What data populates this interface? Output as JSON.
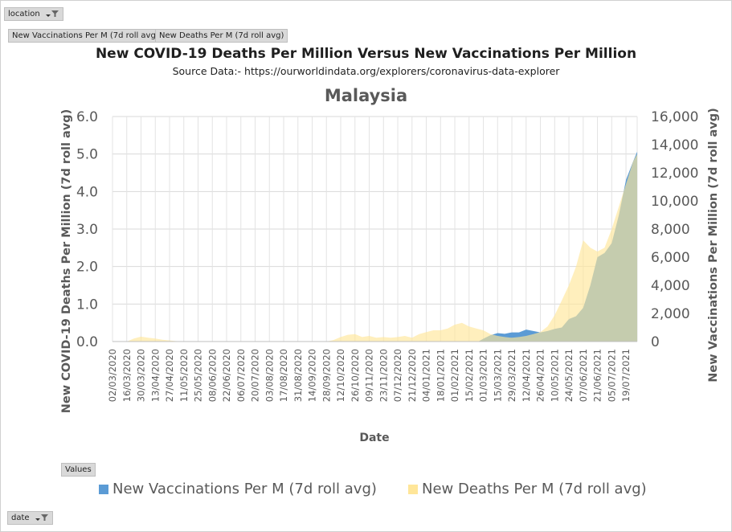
{
  "pivot": {
    "location_label": "location",
    "series_buttons": [
      "New Vaccinations Per M (7d roll avg)",
      "New Deaths Per M (7d roll avg)"
    ],
    "values_label": "Values",
    "date_label": "date"
  },
  "chart_data": {
    "type": "area",
    "title": "New COVID-19 Deaths Per Million  Versus  New Vaccinations  Per Million",
    "subtitle": "Source Data:- https://ourworldindata.org/explorers/coronavirus-data-explorer",
    "chart_title": "Malaysia",
    "xlabel": "Date",
    "ylabel_left": "New COVID-19 Deaths Per Million (7d roll avg)",
    "ylabel_right": "New Vaccinations Per Million (7d roll avg)",
    "ylim_left": [
      0,
      6
    ],
    "ylim_right": [
      0,
      16000
    ],
    "yticks_left": [
      "0.0",
      "1.0",
      "2.0",
      "3.0",
      "4.0",
      "5.0",
      "6.0"
    ],
    "yticks_right": [
      "0",
      "2,000",
      "4,000",
      "6,000",
      "8,000",
      "10,000",
      "12,000",
      "14,000",
      "16,000"
    ],
    "x_range": [
      "02/03/2020",
      "30/07/2021"
    ],
    "x_tick_labels": [
      "02/03/2020",
      "16/03/2020",
      "30/03/2020",
      "13/04/2020",
      "27/04/2020",
      "11/05/2020",
      "25/05/2020",
      "08/06/2020",
      "22/06/2020",
      "06/07/2020",
      "20/07/2020",
      "03/08/2020",
      "17/08/2020",
      "31/08/2020",
      "14/09/2020",
      "28/09/2020",
      "12/10/2020",
      "26/10/2020",
      "09/11/2020",
      "23/11/2020",
      "07/12/2020",
      "21/12/2020",
      "04/01/2021",
      "18/01/2021",
      "01/02/2021",
      "15/02/2021",
      "01/03/2021",
      "15/03/2021",
      "29/03/2021",
      "12/04/2021",
      "26/04/2021",
      "10/05/2021",
      "24/05/2021",
      "07/06/2021",
      "21/06/2021",
      "05/07/2021",
      "19/07/2021"
    ],
    "grid": true,
    "legend_position": "bottom",
    "series": [
      {
        "name": "New Vaccinations Per M (7d roll avg)",
        "axis": "right",
        "color": "#5b9bd5",
        "x": [
          "24/02/2021",
          "01/03/2021",
          "08/03/2021",
          "15/03/2021",
          "22/03/2021",
          "29/03/2021",
          "05/04/2021",
          "12/04/2021",
          "19/04/2021",
          "26/04/2021",
          "03/05/2021",
          "10/05/2021",
          "17/05/2021",
          "24/05/2021",
          "31/05/2021",
          "07/06/2021",
          "14/06/2021",
          "21/06/2021",
          "28/06/2021",
          "05/07/2021",
          "12/07/2021",
          "19/07/2021",
          "26/07/2021",
          "30/07/2021"
        ],
        "y": [
          0,
          200,
          450,
          600,
          550,
          650,
          650,
          850,
          750,
          650,
          750,
          900,
          1000,
          1600,
          1800,
          2400,
          4000,
          6000,
          6300,
          7000,
          9000,
          11500,
          12800,
          13500
        ]
      },
      {
        "name": "New Deaths Per M (7d roll avg)",
        "axis": "left",
        "color": "#ffe699",
        "x": [
          "02/03/2020",
          "16/03/2020",
          "23/03/2020",
          "30/03/2020",
          "06/04/2020",
          "13/04/2020",
          "20/04/2020",
          "27/04/2020",
          "04/05/2020",
          "11/05/2020",
          "25/05/2020",
          "08/06/2020",
          "06/07/2020",
          "03/08/2020",
          "31/08/2020",
          "28/09/2020",
          "05/10/2020",
          "12/10/2020",
          "19/10/2020",
          "26/10/2020",
          "02/11/2020",
          "09/11/2020",
          "16/11/2020",
          "23/11/2020",
          "30/11/2020",
          "07/12/2020",
          "14/12/2020",
          "21/12/2020",
          "28/12/2020",
          "04/01/2021",
          "11/01/2021",
          "18/01/2021",
          "25/01/2021",
          "01/02/2021",
          "08/02/2021",
          "15/02/2021",
          "22/02/2021",
          "01/03/2021",
          "08/03/2021",
          "15/03/2021",
          "22/03/2021",
          "29/03/2021",
          "05/04/2021",
          "12/04/2021",
          "19/04/2021",
          "26/04/2021",
          "03/05/2021",
          "10/05/2021",
          "17/05/2021",
          "24/05/2021",
          "31/05/2021",
          "07/06/2021",
          "14/06/2021",
          "21/06/2021",
          "28/06/2021",
          "05/07/2021",
          "12/07/2021",
          "19/07/2021",
          "26/07/2021",
          "30/07/2021"
        ],
        "y": [
          0,
          0,
          0.08,
          0.13,
          0.1,
          0.08,
          0.05,
          0.03,
          0.01,
          0,
          0.01,
          0,
          0,
          0,
          0,
          0,
          0.04,
          0.12,
          0.18,
          0.2,
          0.12,
          0.15,
          0.1,
          0.12,
          0.1,
          0.12,
          0.15,
          0.1,
          0.2,
          0.25,
          0.3,
          0.3,
          0.35,
          0.45,
          0.5,
          0.4,
          0.35,
          0.3,
          0.2,
          0.15,
          0.12,
          0.1,
          0.12,
          0.15,
          0.2,
          0.25,
          0.4,
          0.7,
          1.1,
          1.5,
          2.0,
          2.7,
          2.5,
          2.4,
          2.5,
          3.0,
          3.6,
          4.2,
          4.8,
          5.0
        ]
      }
    ]
  }
}
